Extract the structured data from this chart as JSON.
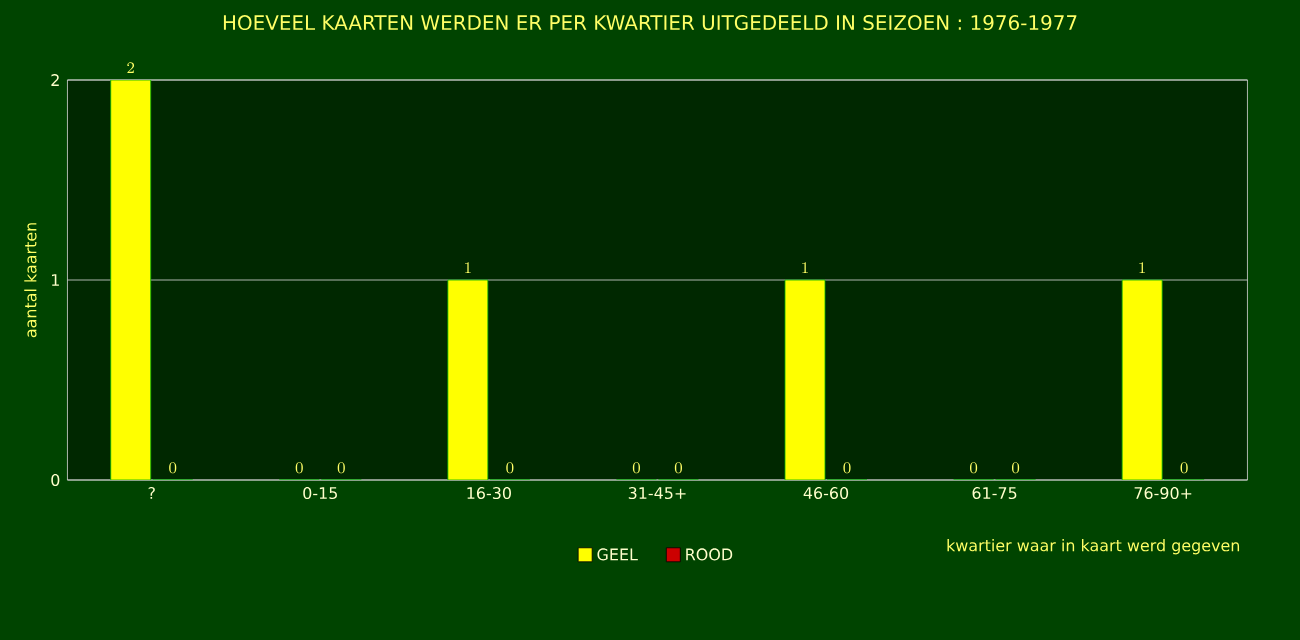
{
  "chart_data": {
    "type": "bar",
    "title": "HOEVEEL KAARTEN WERDEN ER PER KWARTIER UITGEDEELD IN SEIZOEN : 1976-1977",
    "xlabel": "kwartier waar in kaart werd gegeven",
    "ylabel": "aantal kaarten",
    "categories": [
      "?",
      "0-15",
      "16-30",
      "31-45+",
      "46-60",
      "61-75",
      "76-90+"
    ],
    "series": [
      {
        "name": "GEEL",
        "color": "#ffff00",
        "values": [
          2,
          0,
          1,
          0,
          1,
          0,
          1
        ]
      },
      {
        "name": "ROOD",
        "color": "#cc0000",
        "values": [
          0,
          0,
          0,
          0,
          0,
          0,
          0
        ]
      }
    ],
    "ylim": [
      0,
      2
    ],
    "yticks": [
      0,
      1,
      2
    ],
    "grid": "y",
    "legend": "bottom",
    "data_labels": true
  }
}
